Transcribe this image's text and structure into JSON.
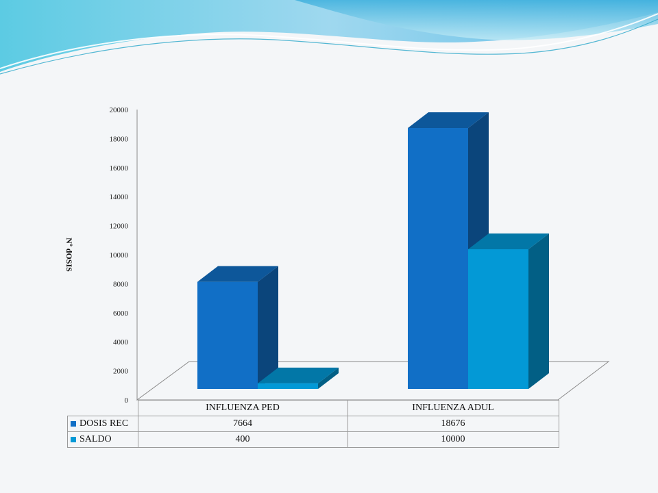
{
  "chart_data": {
    "type": "bar",
    "style": "3d-clustered",
    "categories": [
      "INFLUENZA PED",
      "INFLUENZA ADUL"
    ],
    "series": [
      {
        "name": "DOSIS REC",
        "values": [
          7664,
          18676
        ],
        "color": "#116fc6",
        "display_values": [
          "7664",
          "18676"
        ]
      },
      {
        "name": "SALDO",
        "values": [
          400,
          10000
        ],
        "color": "#0399d6",
        "display_values": [
          "400",
          "10000"
        ]
      }
    ],
    "ylabel": "Nº dOSIS",
    "ylim": [
      0,
      20000
    ],
    "yticks": [
      0,
      2000,
      4000,
      6000,
      8000,
      10000,
      12000,
      14000,
      16000,
      18000,
      20000
    ],
    "grid": false,
    "legend": "data-table-below"
  },
  "colors": {
    "background": "#f4f6f8",
    "banner_light": "#a9dcf0",
    "banner_dark": "#3eb3dc"
  }
}
